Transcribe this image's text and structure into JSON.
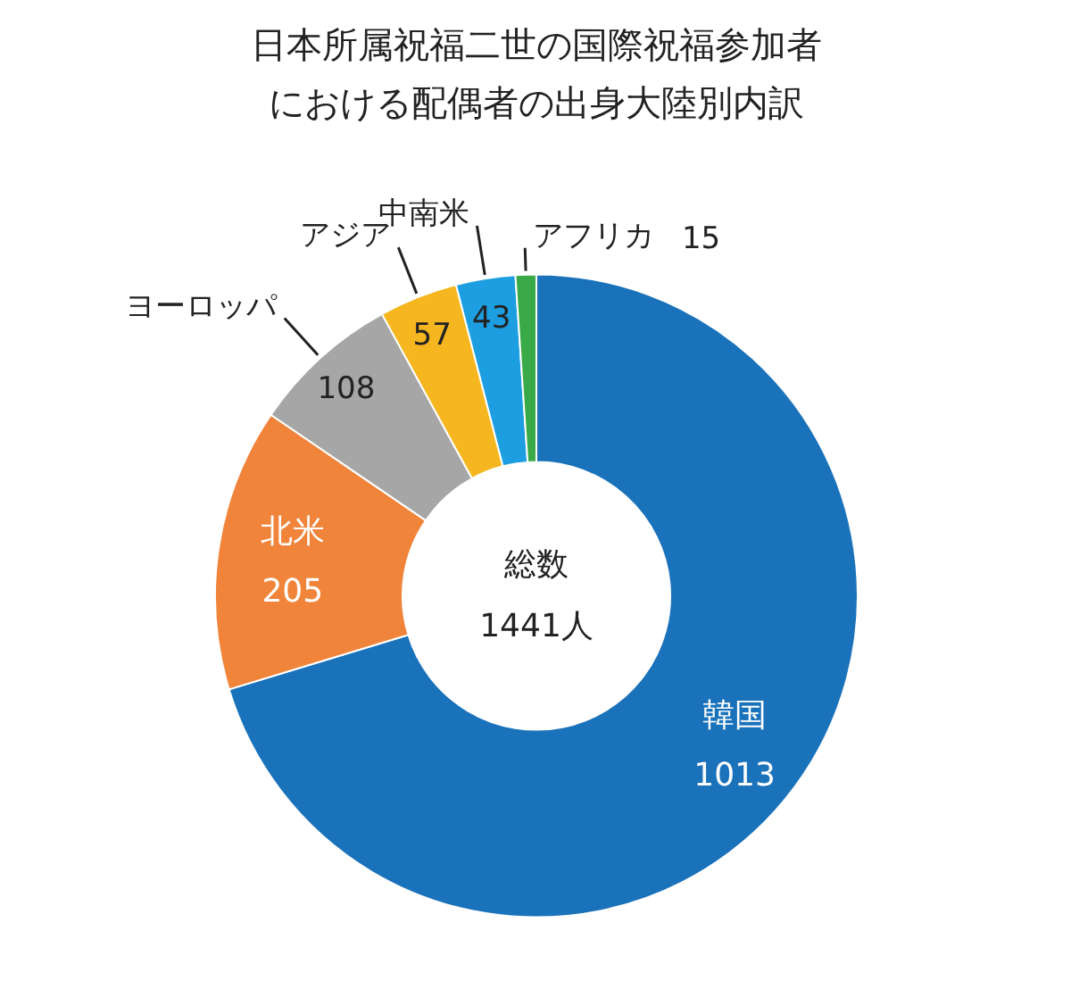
{
  "chart_data": {
    "type": "donut",
    "title": "日本所属祝福二世の国際祝福参加者における配偶者の出身大陸別内訳",
    "categories": [
      "韓国",
      "北米",
      "ヨーロッパ",
      "アジア",
      "中南米",
      "アフリカ"
    ],
    "values": [
      1013,
      205,
      108,
      57,
      43,
      15
    ],
    "colors": [
      "#1a72bb",
      "#f0843a",
      "#a6a6a6",
      "#f6b620",
      "#1d9ee0",
      "#3aaa48"
    ],
    "data_labels": true,
    "annotations": [
      "総数\n1441人"
    ]
  }
}
